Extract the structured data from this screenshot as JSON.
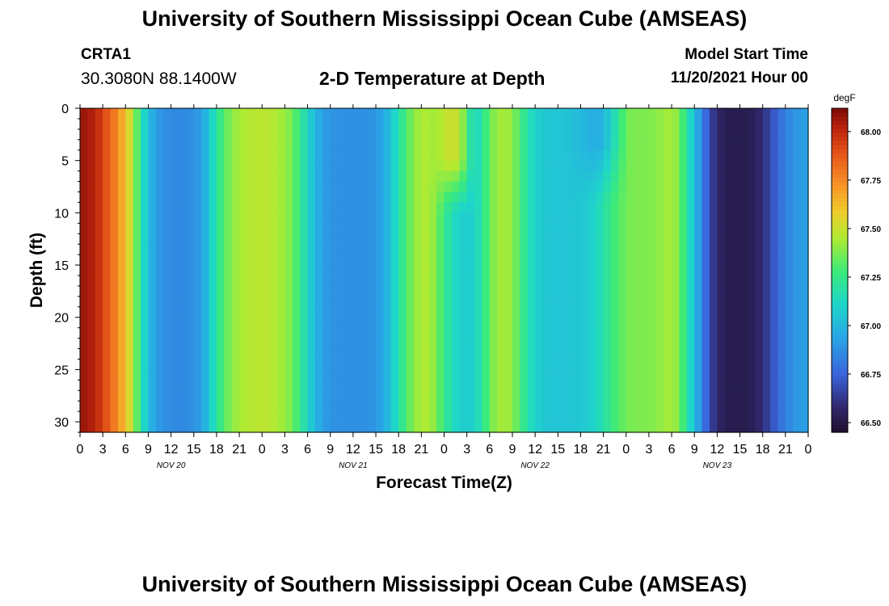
{
  "header": {
    "title": "University of Southern Mississippi Ocean Cube (AMSEAS)",
    "station": "CRTA1",
    "coords": "30.3080N  88.1400W",
    "subtitle": "2-D Temperature at Depth",
    "model_start_label": "Model Start Time",
    "model_start_value": "11/20/2021 Hour 00"
  },
  "footer": {
    "title": "University of Southern Mississippi Ocean Cube (AMSEAS)"
  },
  "chart_data": {
    "type": "heatmap",
    "xlabel": "Forecast Time(Z)",
    "ylabel": "Depth (ft)",
    "y_ticks": [
      0,
      5,
      10,
      15,
      20,
      25,
      30
    ],
    "ylim": [
      0,
      31
    ],
    "y_inverted": true,
    "x_range_hours": [
      0,
      96
    ],
    "x_tick_labels": [
      "0",
      "3",
      "6",
      "9",
      "12",
      "15",
      "18",
      "21",
      "0",
      "3",
      "6",
      "9",
      "12",
      "15",
      "18",
      "21",
      "0",
      "3",
      "6",
      "9",
      "12",
      "15",
      "18",
      "21",
      "0",
      "3",
      "6",
      "9",
      "12",
      "15",
      "18",
      "21",
      "0"
    ],
    "day_labels": [
      "NOV 20",
      "NOV 21",
      "NOV 22",
      "NOV 23"
    ],
    "colorbar": {
      "unit": "degF",
      "ticks": [
        68.0,
        67.75,
        67.5,
        67.25,
        67.0,
        66.75,
        66.5
      ],
      "range": [
        66.45,
        68.12
      ]
    },
    "temperature_profile": {
      "hours": [
        0,
        2,
        4,
        6,
        7,
        8,
        9,
        10,
        11,
        12,
        13,
        14,
        15,
        16,
        17,
        18,
        19,
        20,
        21,
        22,
        23,
        24,
        25,
        26,
        27,
        28,
        29,
        30,
        31,
        32,
        33,
        34,
        35,
        36,
        37,
        38,
        39,
        40,
        41,
        42,
        43,
        44,
        45,
        46,
        47,
        48,
        49,
        50,
        51,
        52,
        53,
        54,
        55,
        56,
        57,
        58,
        59,
        60,
        61,
        62,
        63,
        64,
        65,
        66,
        67,
        68,
        69,
        70,
        71,
        72,
        73,
        74,
        75,
        76,
        77,
        78,
        79,
        80,
        81,
        82,
        83,
        84,
        85,
        86,
        87,
        88,
        89,
        90,
        91,
        92,
        93,
        94,
        95,
        96
      ],
      "temps_degF": [
        68.08,
        68.02,
        67.85,
        67.62,
        67.45,
        67.22,
        67.02,
        66.92,
        66.88,
        66.86,
        66.86,
        66.86,
        66.88,
        66.92,
        67.05,
        67.2,
        67.32,
        67.4,
        67.44,
        67.46,
        67.47,
        67.48,
        67.47,
        67.45,
        67.42,
        67.36,
        67.25,
        67.12,
        67.0,
        66.92,
        66.89,
        66.88,
        66.88,
        66.88,
        66.88,
        66.88,
        66.9,
        66.95,
        67.05,
        67.18,
        67.3,
        67.4,
        67.45,
        67.45,
        67.38,
        67.25,
        67.15,
        67.1,
        67.08,
        67.1,
        67.2,
        67.35,
        67.42,
        67.45,
        67.4,
        67.3,
        67.18,
        67.1,
        67.06,
        67.05,
        67.05,
        67.05,
        67.05,
        67.06,
        67.08,
        67.12,
        67.18,
        67.26,
        67.32,
        67.36,
        67.38,
        67.38,
        67.38,
        67.4,
        67.42,
        67.45,
        67.38,
        67.2,
        67.02,
        66.85,
        66.68,
        66.58,
        66.53,
        66.52,
        66.52,
        66.52,
        66.55,
        66.6,
        66.68,
        66.76,
        66.84,
        66.88,
        66.92,
        66.92
      ],
      "shallow_anomaly": {
        "warm_hours": [
          46,
          52
        ],
        "warm_depth_ft": [
          0,
          10
        ],
        "warm_peak_degF": 67.5,
        "cool_hours": [
          64,
          72
        ],
        "cool_depth_ft": [
          0,
          9
        ],
        "cool_min_degF": 66.95
      }
    }
  }
}
